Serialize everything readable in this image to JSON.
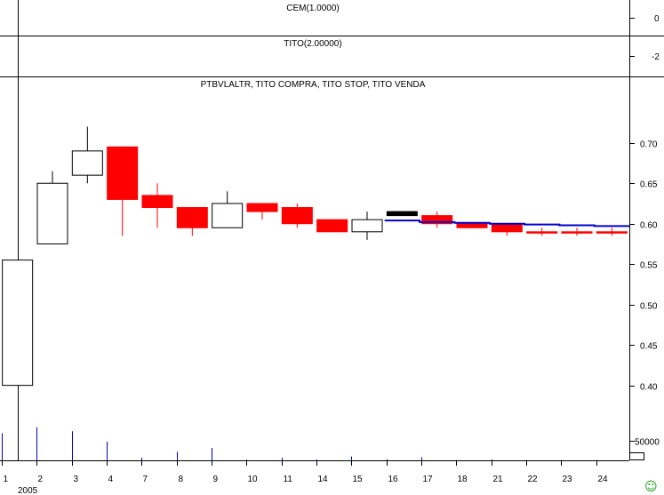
{
  "panels": {
    "cem": {
      "title": "CEM(1.0000)",
      "ticks": [
        "0"
      ]
    },
    "tito": {
      "title": "TITO(2.00000)",
      "ticks": [
        "-2"
      ]
    },
    "price": {
      "title": "PTBVLALTR, TITO COMPRA, TITO STOP, TITO VENDA"
    },
    "volume": {
      "tick_label": "50000"
    }
  },
  "x_axis": {
    "labels": [
      "1",
      "2",
      "3",
      "4",
      "7",
      "8",
      "9",
      "10",
      "11",
      "14",
      "15",
      "16",
      "17",
      "18",
      "21",
      "22",
      "23",
      "24"
    ],
    "year_label": "2005"
  },
  "colors": {
    "up_candle": "#ffffff",
    "down_candle": "#ff0000",
    "special_candle": "#000000",
    "stop_line": "#0000cc",
    "volume": "#0000cc",
    "smiley": "#1aa01a"
  },
  "icons": {
    "status": "smiley-icon"
  },
  "chart_data": [
    {
      "type": "candlestick",
      "title": "PTBVLALTR, TITO COMPRA, TITO STOP, TITO VENDA",
      "categories": [
        "1",
        "2",
        "3",
        "4",
        "7",
        "8",
        "9",
        "10",
        "11",
        "14",
        "15",
        "16",
        "17",
        "18",
        "21",
        "22",
        "23",
        "24"
      ],
      "ylim": [
        0.36,
        0.78
      ],
      "yticks": [
        0.4,
        0.45,
        0.5,
        0.55,
        0.6,
        0.65,
        0.7
      ],
      "candles": [
        {
          "open": 0.4,
          "high": 0.555,
          "low": 0.4,
          "close": 0.555,
          "color": "up"
        },
        {
          "open": 0.575,
          "high": 0.665,
          "low": 0.575,
          "close": 0.65,
          "color": "up"
        },
        {
          "open": 0.66,
          "high": 0.72,
          "low": 0.65,
          "close": 0.69,
          "color": "up"
        },
        {
          "open": 0.695,
          "high": 0.695,
          "low": 0.585,
          "close": 0.63,
          "color": "down"
        },
        {
          "open": 0.635,
          "high": 0.65,
          "low": 0.595,
          "close": 0.62,
          "color": "down"
        },
        {
          "open": 0.62,
          "high": 0.62,
          "low": 0.585,
          "close": 0.595,
          "color": "down"
        },
        {
          "open": 0.595,
          "high": 0.64,
          "low": 0.595,
          "close": 0.625,
          "color": "up"
        },
        {
          "open": 0.625,
          "high": 0.625,
          "low": 0.605,
          "close": 0.615,
          "color": "down"
        },
        {
          "open": 0.62,
          "high": 0.625,
          "low": 0.595,
          "close": 0.6,
          "color": "down"
        },
        {
          "open": 0.605,
          "high": 0.605,
          "low": 0.59,
          "close": 0.59,
          "color": "down"
        },
        {
          "open": 0.59,
          "high": 0.615,
          "low": 0.58,
          "close": 0.605,
          "color": "up"
        },
        {
          "open": 0.615,
          "high": 0.615,
          "low": 0.61,
          "close": 0.61,
          "color": "special"
        },
        {
          "open": 0.61,
          "high": 0.615,
          "low": 0.595,
          "close": 0.6,
          "color": "down"
        },
        {
          "open": 0.6,
          "high": 0.6,
          "low": 0.595,
          "close": 0.595,
          "color": "down"
        },
        {
          "open": 0.6,
          "high": 0.6,
          "low": 0.585,
          "close": 0.59,
          "color": "down"
        },
        {
          "open": 0.59,
          "high": 0.595,
          "low": 0.585,
          "close": 0.59,
          "color": "down"
        },
        {
          "open": 0.59,
          "high": 0.595,
          "low": 0.585,
          "close": 0.59,
          "color": "down"
        },
        {
          "open": 0.59,
          "high": 0.595,
          "low": 0.585,
          "close": 0.59,
          "color": "down"
        }
      ],
      "stop_line": {
        "start_index": 11,
        "values": [
          0.604,
          0.602,
          0.601,
          0.6,
          0.599,
          0.598,
          0.597
        ]
      }
    },
    {
      "type": "bar",
      "title": "",
      "categories": [
        "1",
        "2",
        "3",
        "4",
        "7",
        "8",
        "9",
        "10",
        "11",
        "14",
        "15",
        "16",
        "17",
        "18",
        "21",
        "22",
        "23",
        "24"
      ],
      "values": [
        70000,
        85000,
        75000,
        48000,
        7000,
        22000,
        32000,
        2000,
        7000,
        2000,
        10000,
        3000,
        8000,
        1000,
        2000,
        1000,
        1000,
        1000
      ],
      "ylim": [
        0,
        110000
      ],
      "yticks": [
        50000
      ]
    }
  ]
}
